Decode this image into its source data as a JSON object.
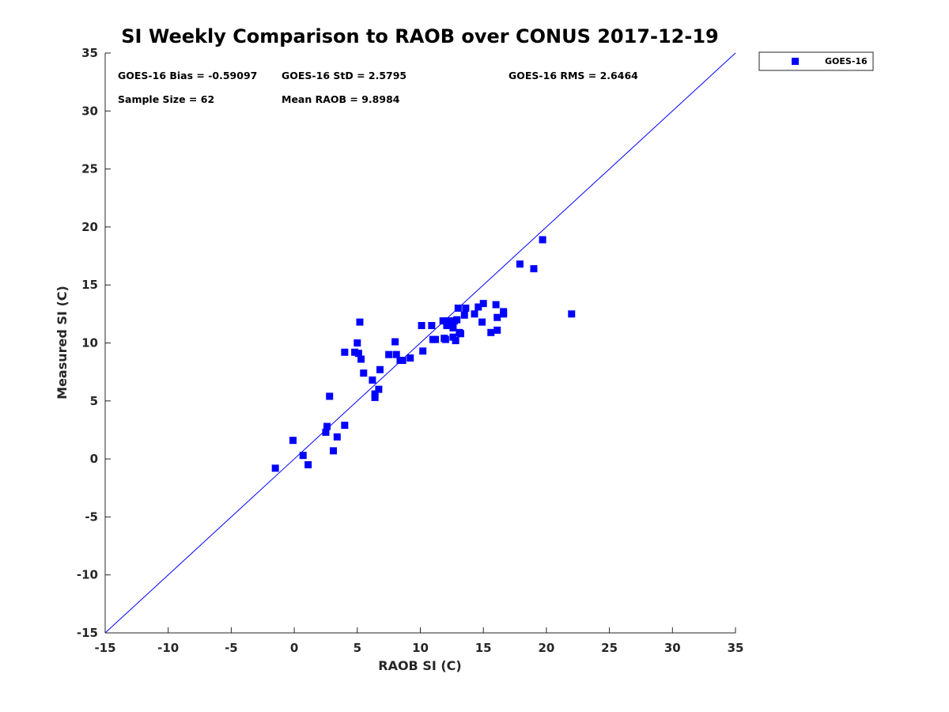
{
  "chart_data": {
    "type": "scatter",
    "title": "SI Weekly Comparison to RAOB over CONUS 2017-12-19",
    "xlabel": "RAOB SI (C)",
    "ylabel": "Measured SI (C)",
    "xlim": [
      -15,
      35
    ],
    "ylim": [
      -15,
      35
    ],
    "xticks": [
      "-15",
      "-10",
      "-5",
      "0",
      "5",
      "10",
      "15",
      "20",
      "25",
      "30",
      "35"
    ],
    "yticks": [
      "35",
      "30",
      "25",
      "20",
      "15",
      "10",
      "5",
      "0",
      "-5",
      "-10",
      "-15"
    ],
    "xtick_values": [
      -15,
      -10,
      -5,
      0,
      5,
      10,
      15,
      20,
      25,
      30,
      35
    ],
    "ytick_values": [
      35,
      30,
      25,
      20,
      15,
      10,
      5,
      0,
      -5,
      -10,
      -15
    ],
    "reference_line": {
      "type": "one-to-one",
      "from": [
        -15,
        -15
      ],
      "to": [
        35,
        35
      ],
      "color": "#0000ff"
    },
    "legend": {
      "position": "outside-top-right",
      "entries": [
        "GOES-16"
      ]
    },
    "stats": {
      "bias": "GOES-16 Bias = -0.59097",
      "std": "GOES-16 StD = 2.5795",
      "rms": "GOES-16 RMS = 2.6464",
      "sample": "Sample Size = 62",
      "mean": "Mean RAOB = 9.8984"
    },
    "series": [
      {
        "name": "GOES-16",
        "color": "#0000ff",
        "marker": "square",
        "points": [
          [
            -1.5,
            -0.8
          ],
          [
            -0.1,
            1.6
          ],
          [
            0.7,
            0.3
          ],
          [
            1.1,
            -0.5
          ],
          [
            2.5,
            2.3
          ],
          [
            2.6,
            2.8
          ],
          [
            2.8,
            5.4
          ],
          [
            3.1,
            0.7
          ],
          [
            3.4,
            1.9
          ],
          [
            4.0,
            2.9
          ],
          [
            4.0,
            9.2
          ],
          [
            4.8,
            9.2
          ],
          [
            5.0,
            10.0
          ],
          [
            5.1,
            9.1
          ],
          [
            5.2,
            11.8
          ],
          [
            5.3,
            8.6
          ],
          [
            5.5,
            7.4
          ],
          [
            6.2,
            6.8
          ],
          [
            6.4,
            5.6
          ],
          [
            6.4,
            5.3
          ],
          [
            6.7,
            6.0
          ],
          [
            6.8,
            7.7
          ],
          [
            7.5,
            9.0
          ],
          [
            8.0,
            10.1
          ],
          [
            8.1,
            9.0
          ],
          [
            8.4,
            8.5
          ],
          [
            8.6,
            8.5
          ],
          [
            9.2,
            8.7
          ],
          [
            10.1,
            11.5
          ],
          [
            10.2,
            9.3
          ],
          [
            10.9,
            11.5
          ],
          [
            11.0,
            10.3
          ],
          [
            11.2,
            10.3
          ],
          [
            11.8,
            11.9
          ],
          [
            11.9,
            10.4
          ],
          [
            12.0,
            10.3
          ],
          [
            12.1,
            11.5
          ],
          [
            12.2,
            11.9
          ],
          [
            12.6,
            11.3
          ],
          [
            12.6,
            10.5
          ],
          [
            12.7,
            11.9
          ],
          [
            12.8,
            10.2
          ],
          [
            12.9,
            12.0
          ],
          [
            13.0,
            13.0
          ],
          [
            13.1,
            10.9
          ],
          [
            13.2,
            10.8
          ],
          [
            13.5,
            12.4
          ],
          [
            13.6,
            13.0
          ],
          [
            14.3,
            12.5
          ],
          [
            14.6,
            13.1
          ],
          [
            14.9,
            11.8
          ],
          [
            15.0,
            13.4
          ],
          [
            15.6,
            10.9
          ],
          [
            16.0,
            13.3
          ],
          [
            16.1,
            12.2
          ],
          [
            16.1,
            11.1
          ],
          [
            16.6,
            12.7
          ],
          [
            16.6,
            12.5
          ],
          [
            17.9,
            16.8
          ],
          [
            19.0,
            16.4
          ],
          [
            19.7,
            18.9
          ],
          [
            22.0,
            12.5
          ]
        ]
      }
    ]
  }
}
